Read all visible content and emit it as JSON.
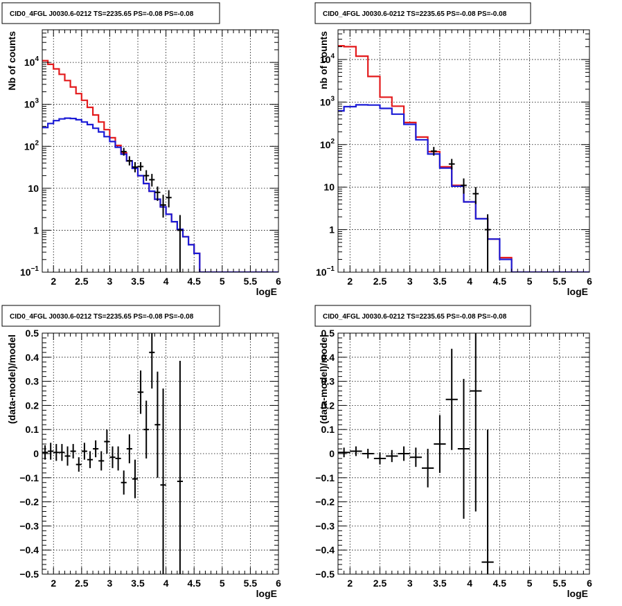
{
  "colors": {
    "data": "#000000",
    "total_model": "#e31a1c",
    "source_model": "#1b1bd6"
  },
  "chart_data": [
    {
      "type": "line",
      "panel": "top-left",
      "title": "CID0_4FGL J0030.6-0212 TS=2235.65 PS=-0.08 PS=-0.08",
      "xlabel": "logE",
      "ylabel": "Nb of counts",
      "xlim": [
        1.8,
        6.0
      ],
      "ylim": [
        0.1,
        60000
      ],
      "yscale": "log",
      "grid": true,
      "x_ticks": [
        2,
        2.5,
        3,
        3.5,
        4,
        4.5,
        5,
        5.5,
        6
      ],
      "y_ticks": [
        {
          "v": 0.1,
          "t": "10",
          "e": "−1"
        },
        {
          "v": 1,
          "t": "1"
        },
        {
          "v": 10,
          "t": "10"
        },
        {
          "v": 100,
          "t": "10",
          "e": "2"
        },
        {
          "v": 1000,
          "t": "10",
          "e": "3"
        },
        {
          "v": 10000,
          "t": "10",
          "e": "4"
        }
      ],
      "bin_edges": [
        1.8,
        1.9,
        2.0,
        2.1,
        2.2,
        2.3,
        2.4,
        2.5,
        2.6,
        2.7,
        2.8,
        2.9,
        3.0,
        3.1,
        3.2,
        3.3,
        3.4,
        3.5,
        3.6,
        3.7,
        3.8,
        3.9,
        4.0,
        4.1,
        4.2,
        4.3,
        4.4,
        4.5,
        4.6,
        4.7,
        4.8,
        4.9,
        5.0,
        5.1,
        5.2,
        5.3,
        5.4,
        5.5,
        5.6,
        5.7,
        5.8,
        5.9,
        6.0
      ],
      "series": [
        {
          "name": "",
          "style": "step",
          "color": "#e31a1c",
          "values": [
            11000,
            9000,
            7000,
            5200,
            3700,
            2600,
            1800,
            1250,
            850,
            560,
            380,
            250,
            160,
            105,
            70,
            45,
            30,
            20,
            13,
            8.5,
            5.5,
            3.6,
            2.4,
            1.6,
            1.05,
            0.7,
            0.45,
            0.28,
            0.1,
            0.1,
            0.1,
            0.1,
            0.1,
            0.1,
            0.1,
            0.1,
            0.1,
            0.1,
            0.1,
            0.1,
            0.1,
            0.1
          ]
        },
        {
          "name": "",
          "style": "step",
          "color": "#1b1bd6",
          "values": [
            280,
            350,
            410,
            450,
            470,
            460,
            430,
            380,
            330,
            270,
            220,
            170,
            130,
            95,
            65,
            45,
            30,
            20,
            13,
            8.5,
            5.5,
            3.6,
            2.4,
            1.6,
            1.05,
            0.7,
            0.45,
            0.28,
            0.1,
            0.1,
            0.1,
            0.1,
            0.1,
            0.1,
            0.1,
            0.1,
            0.1,
            0.1,
            0.1,
            0.1,
            0.1,
            0.1
          ]
        },
        {
          "name": "",
          "style": "errorbar",
          "color": "#000000",
          "points": [
            {
              "x": 3.25,
              "y": 75,
              "ylo": 60,
              "yhi": 92
            },
            {
              "x": 3.35,
              "y": 45,
              "ylo": 35,
              "yhi": 58
            },
            {
              "x": 3.45,
              "y": 32,
              "ylo": 24,
              "yhi": 42
            },
            {
              "x": 3.55,
              "y": 33,
              "ylo": 26,
              "yhi": 42
            },
            {
              "x": 3.65,
              "y": 20,
              "ylo": 15,
              "yhi": 27
            },
            {
              "x": 3.75,
              "y": 16,
              "ylo": 11,
              "yhi": 22
            },
            {
              "x": 3.85,
              "y": 8,
              "ylo": 5,
              "yhi": 11
            },
            {
              "x": 3.95,
              "y": 4,
              "ylo": 2,
              "yhi": 7
            },
            {
              "x": 4.05,
              "y": 6,
              "ylo": 3.5,
              "yhi": 9
            },
            {
              "x": 4.25,
              "y": 1,
              "ylo": 0.1,
              "yhi": 2.3
            }
          ]
        }
      ]
    },
    {
      "type": "line",
      "panel": "top-right",
      "title": "CID0_4FGL J0030.6-0212 TS=2235.65 PS=-0.08 PS=-0.08",
      "xlabel": "logE",
      "ylabel": "nb of counts",
      "xlim": [
        1.8,
        6.0
      ],
      "ylim": [
        0.1,
        50000
      ],
      "yscale": "log",
      "grid": true,
      "x_ticks": [
        2,
        2.5,
        3,
        3.5,
        4,
        4.5,
        5,
        5.5,
        6
      ],
      "y_ticks": [
        {
          "v": 0.1,
          "t": "10",
          "e": "−1"
        },
        {
          "v": 1,
          "t": "1"
        },
        {
          "v": 10,
          "t": "10"
        },
        {
          "v": 100,
          "t": "10",
          "e": "2"
        },
        {
          "v": 1000,
          "t": "10",
          "e": "3"
        },
        {
          "v": 10000,
          "t": "10",
          "e": "4"
        }
      ],
      "bin_edges": [
        1.8,
        1.9,
        2.1,
        2.3,
        2.5,
        2.7,
        2.9,
        3.1,
        3.3,
        3.5,
        3.7,
        3.9,
        4.1,
        4.3,
        4.5,
        4.7,
        4.9,
        5.1,
        5.3,
        5.5,
        5.7,
        5.9,
        6.0
      ],
      "series": [
        {
          "name": "",
          "style": "step",
          "color": "#e31a1c",
          "values": [
            21000,
            20000,
            12000,
            4000,
            1300,
            800,
            330,
            150,
            68,
            30,
            11,
            4.5,
            1.8,
            0.6,
            0.22,
            0.1,
            0.1,
            0.1,
            0.1,
            0.1,
            0.1,
            0.1
          ]
        },
        {
          "name": "",
          "style": "step",
          "color": "#1b1bd6",
          "values": [
            620,
            780,
            860,
            850,
            710,
            520,
            300,
            130,
            60,
            28,
            10.5,
            4.5,
            1.8,
            0.6,
            0.2,
            0.1,
            0.1,
            0.1,
            0.1,
            0.1,
            0.1,
            0.1
          ]
        },
        {
          "name": "",
          "style": "errorbar",
          "color": "#000000",
          "points": [
            {
              "x": 3.4,
              "y": 70,
              "ylo": 55,
              "yhi": 88
            },
            {
              "x": 3.7,
              "y": 35,
              "ylo": 26,
              "yhi": 46
            },
            {
              "x": 3.9,
              "y": 11,
              "ylo": 7,
              "yhi": 16
            },
            {
              "x": 4.1,
              "y": 7,
              "ylo": 4,
              "yhi": 10
            },
            {
              "x": 4.3,
              "y": 1,
              "ylo": 0.1,
              "yhi": 2.3
            }
          ]
        }
      ]
    },
    {
      "type": "scatter",
      "panel": "bottom-left",
      "title": "CID0_4FGL J0030.6-0212 TS=2235.65 PS=-0.08 PS=-0.08",
      "xlabel": "logE",
      "ylabel": "(data-model)/model",
      "xlim": [
        1.8,
        6.0
      ],
      "ylim": [
        -0.5,
        0.5
      ],
      "yscale": "linear",
      "grid": true,
      "x_ticks": [
        2,
        2.5,
        3,
        3.5,
        4,
        4.5,
        5,
        5.5,
        6
      ],
      "y_ticks": [
        {
          "v": -0.5,
          "t": "−0.5"
        },
        {
          "v": -0.4,
          "t": "−0.4"
        },
        {
          "v": -0.3,
          "t": "−0.3"
        },
        {
          "v": -0.2,
          "t": "−0.2"
        },
        {
          "v": -0.1,
          "t": "−0.1"
        },
        {
          "v": 0,
          "t": "0"
        },
        {
          "v": 0.1,
          "t": "0.1"
        },
        {
          "v": 0.2,
          "t": "0.2"
        },
        {
          "v": 0.3,
          "t": "0.3"
        },
        {
          "v": 0.4,
          "t": "0.4"
        },
        {
          "v": 0.5,
          "t": "0.5"
        }
      ],
      "series": [
        {
          "name": "",
          "style": "errorbar",
          "color": "#000000",
          "half_width": 0.05,
          "points": [
            {
              "x": 1.85,
              "y": 0.005,
              "err": 0.03
            },
            {
              "x": 1.95,
              "y": 0.01,
              "err": 0.035
            },
            {
              "x": 2.05,
              "y": 0.005,
              "err": 0.035
            },
            {
              "x": 2.15,
              "y": 0.005,
              "err": 0.035
            },
            {
              "x": 2.25,
              "y": -0.01,
              "err": 0.04
            },
            {
              "x": 2.35,
              "y": 0.01,
              "err": 0.03
            },
            {
              "x": 2.45,
              "y": -0.045,
              "err": 0.03
            },
            {
              "x": 2.55,
              "y": 0.01,
              "err": 0.035
            },
            {
              "x": 2.65,
              "y": -0.025,
              "err": 0.035
            },
            {
              "x": 2.75,
              "y": 0.02,
              "err": 0.035
            },
            {
              "x": 2.85,
              "y": -0.03,
              "err": 0.04
            },
            {
              "x": 2.95,
              "y": 0.05,
              "err": 0.05
            },
            {
              "x": 3.05,
              "y": -0.015,
              "err": 0.045
            },
            {
              "x": 3.15,
              "y": -0.02,
              "err": 0.05
            },
            {
              "x": 3.25,
              "y": -0.12,
              "err": 0.05
            },
            {
              "x": 3.35,
              "y": 0.02,
              "err": 0.06
            },
            {
              "x": 3.45,
              "y": -0.105,
              "err": 0.08
            },
            {
              "x": 3.55,
              "y": 0.255,
              "err": 0.09
            },
            {
              "x": 3.65,
              "y": 0.1,
              "err": 0.12
            },
            {
              "x": 3.75,
              "y": 0.42,
              "err": 0.15
            },
            {
              "x": 3.85,
              "y": 0.12,
              "err": 0.22
            },
            {
              "x": 3.95,
              "y": -0.13,
              "err": 0.4
            },
            {
              "x": 4.25,
              "y": -0.115,
              "err": 0.5
            }
          ]
        }
      ]
    },
    {
      "type": "scatter",
      "panel": "bottom-right",
      "title": "CID0_4FGL J0030.6-0212 TS=2235.65 PS=-0.08 PS=-0.08",
      "xlabel": "logE",
      "ylabel": "(data-model)/model",
      "xlim": [
        1.8,
        6.0
      ],
      "ylim": [
        -0.5,
        0.5
      ],
      "yscale": "linear",
      "grid": true,
      "x_ticks": [
        2,
        2.5,
        3,
        3.5,
        4,
        4.5,
        5,
        5.5,
        6
      ],
      "y_ticks": [
        {
          "v": -0.5,
          "t": "−0.5"
        },
        {
          "v": -0.4,
          "t": "−0.4"
        },
        {
          "v": -0.3,
          "t": "−0.3"
        },
        {
          "v": -0.2,
          "t": "−0.2"
        },
        {
          "v": -0.1,
          "t": "−0.1"
        },
        {
          "v": 0,
          "t": "0"
        },
        {
          "v": 0.1,
          "t": "0.1"
        },
        {
          "v": 0.2,
          "t": "0.2"
        },
        {
          "v": 0.3,
          "t": "0.3"
        },
        {
          "v": 0.4,
          "t": "0.4"
        },
        {
          "v": 0.5,
          "t": "0.5"
        }
      ],
      "series": [
        {
          "name": "",
          "style": "errorbar",
          "color": "#000000",
          "half_width": 0.1,
          "points": [
            {
              "x": 1.9,
              "y": 0.005,
              "err": 0.02
            },
            {
              "x": 2.1,
              "y": 0.01,
              "err": 0.02
            },
            {
              "x": 2.3,
              "y": 0.0,
              "err": 0.02
            },
            {
              "x": 2.5,
              "y": -0.02,
              "err": 0.025
            },
            {
              "x": 2.7,
              "y": -0.01,
              "err": 0.025
            },
            {
              "x": 2.9,
              "y": 0.0,
              "err": 0.03
            },
            {
              "x": 3.1,
              "y": -0.015,
              "err": 0.04
            },
            {
              "x": 3.3,
              "y": -0.06,
              "err": 0.08
            },
            {
              "x": 3.5,
              "y": 0.04,
              "err": 0.12
            },
            {
              "x": 3.7,
              "y": 0.225,
              "err": 0.21
            },
            {
              "x": 3.9,
              "y": 0.02,
              "err": 0.29
            },
            {
              "x": 4.1,
              "y": 0.26,
              "err": 0.5
            },
            {
              "x": 4.3,
              "y": -0.45,
              "err": 0.55
            }
          ]
        }
      ]
    }
  ]
}
